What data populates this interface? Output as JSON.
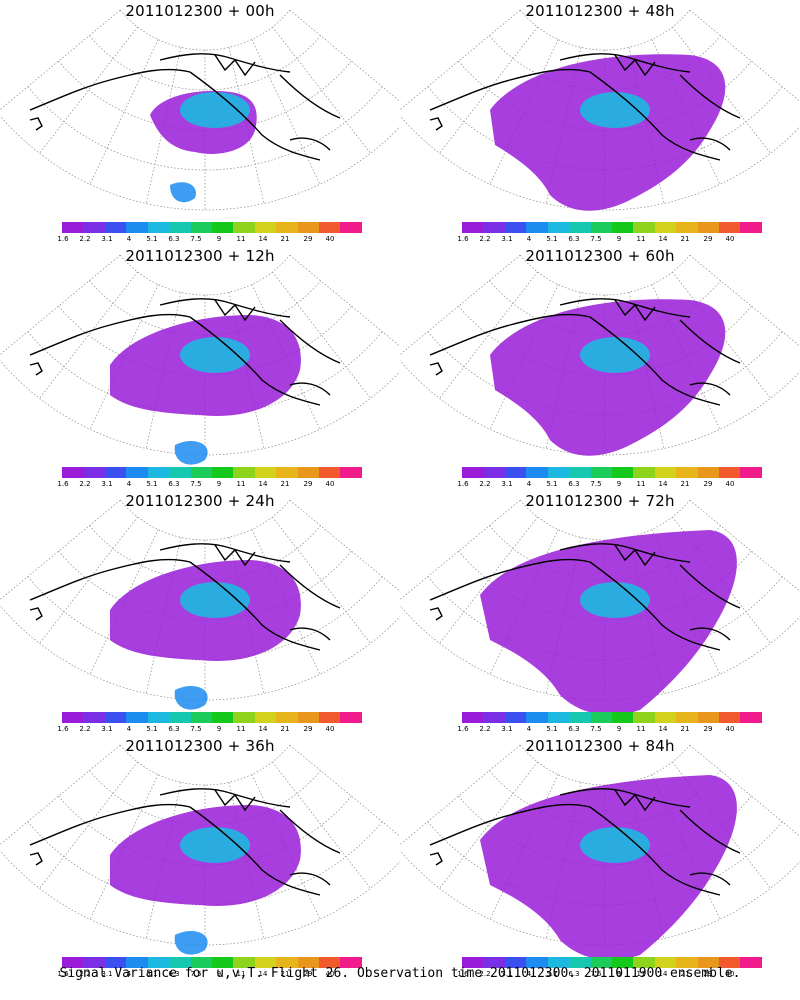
{
  "panels": [
    {
      "title": "2011012300 + 00h",
      "lead": "00h"
    },
    {
      "title": "2011012300 + 48h",
      "lead": "48h"
    },
    {
      "title": "2011012300 + 12h",
      "lead": "12h"
    },
    {
      "title": "2011012300 + 60h",
      "lead": "60h"
    },
    {
      "title": "2011012300 + 24h",
      "lead": "24h"
    },
    {
      "title": "2011012300 + 72h",
      "lead": "72h"
    },
    {
      "title": "2011012300 + 36h",
      "lead": "36h"
    },
    {
      "title": "2011012300 + 84h",
      "lead": "84h"
    }
  ],
  "colorbar": {
    "ticks": [
      "1.6",
      "2.2",
      "3.1",
      "4",
      "5.1",
      "6.3",
      "7.5",
      "9",
      "11",
      "14",
      "21",
      "29",
      "40"
    ],
    "colors": [
      "#9a1cd8",
      "#7a2ee6",
      "#3c4ff0",
      "#1c8cf0",
      "#1cb8e0",
      "#16c8b0",
      "#1ccc5a",
      "#14c81c",
      "#8ed41c",
      "#d2d21c",
      "#e8b41c",
      "#e8961c",
      "#f05a2c",
      "#f01c8c"
    ]
  },
  "footer": "Signal Variance for u,v,T. Flight 26. Observation time 2011012300. 2011011900 ensemble."
}
